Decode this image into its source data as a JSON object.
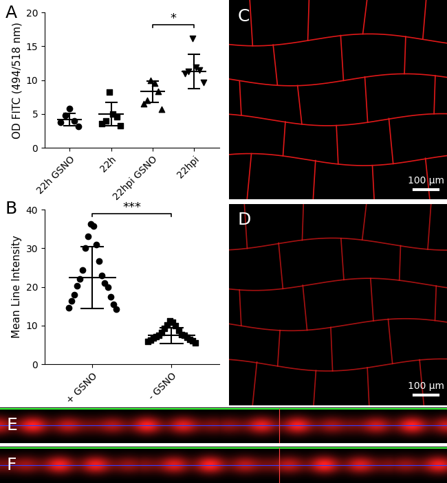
{
  "chart_data": [
    {
      "panel": "A",
      "type": "scatter",
      "y_label": "OD FITC (494/518 nm)",
      "categories": [
        "22h GSNO",
        "22h",
        "22hpi GSNO",
        "22hpi"
      ],
      "markers": [
        "circle",
        "square",
        "triangle_up",
        "triangle_down"
      ],
      "color": "#000000",
      "values": [
        [
          5.8,
          4.8,
          4.0,
          3.8,
          3.2
        ],
        [
          8.2,
          5.0,
          4.6,
          4.0,
          3.6,
          3.3
        ],
        [
          10.0,
          9.6,
          8.3,
          7.0,
          6.5,
          5.7
        ],
        [
          16.2,
          11.9,
          11.5,
          11.3,
          11.0,
          9.7
        ]
      ],
      "means": [
        4.2,
        5.0,
        8.3,
        11.3
      ],
      "sds": [
        0.9,
        1.7,
        1.6,
        2.5
      ],
      "ylim": [
        0,
        20
      ],
      "yticks": [
        0,
        5,
        10,
        15,
        20
      ],
      "annotations": [
        {
          "text": "*",
          "between": [
            "22hpi GSNO",
            "22hpi"
          ],
          "y": 18.2
        }
      ]
    },
    {
      "panel": "B",
      "type": "scatter",
      "y_label": "Mean Line Intensity",
      "categories": [
        "+ GSNO",
        "- GSNO"
      ],
      "markers": [
        "circle",
        "square"
      ],
      "color": "#000000",
      "values": [
        [
          36.2,
          35.8,
          33.0,
          31.0,
          30.0,
          26.6,
          24.4,
          23.0,
          22.0,
          21.0,
          20.2,
          20.0,
          18.0,
          17.5,
          16.4,
          15.5,
          14.6,
          14.2
        ],
        [
          11.2,
          10.9,
          10.2,
          10.0,
          9.3,
          8.7,
          8.2,
          7.7,
          7.5,
          7.4,
          7.2,
          7.0,
          6.8,
          6.5,
          6.2,
          6.0,
          5.8,
          5.6
        ]
      ],
      "means": [
        22.4,
        7.4
      ],
      "sds": [
        8.0,
        2.0
      ],
      "ylim": [
        0,
        40
      ],
      "yticks": [
        0,
        10,
        20,
        30,
        40
      ],
      "annotations": [
        {
          "text": "***",
          "between": [
            "+ GSNO",
            "- GSNO"
          ],
          "y": 39.0
        }
      ]
    }
  ],
  "images": [
    {
      "panel": "C",
      "scale_bar": "100 µm"
    },
    {
      "panel": "D",
      "scale_bar": "100 µm"
    },
    {
      "panel": "E"
    },
    {
      "panel": "F"
    }
  ]
}
